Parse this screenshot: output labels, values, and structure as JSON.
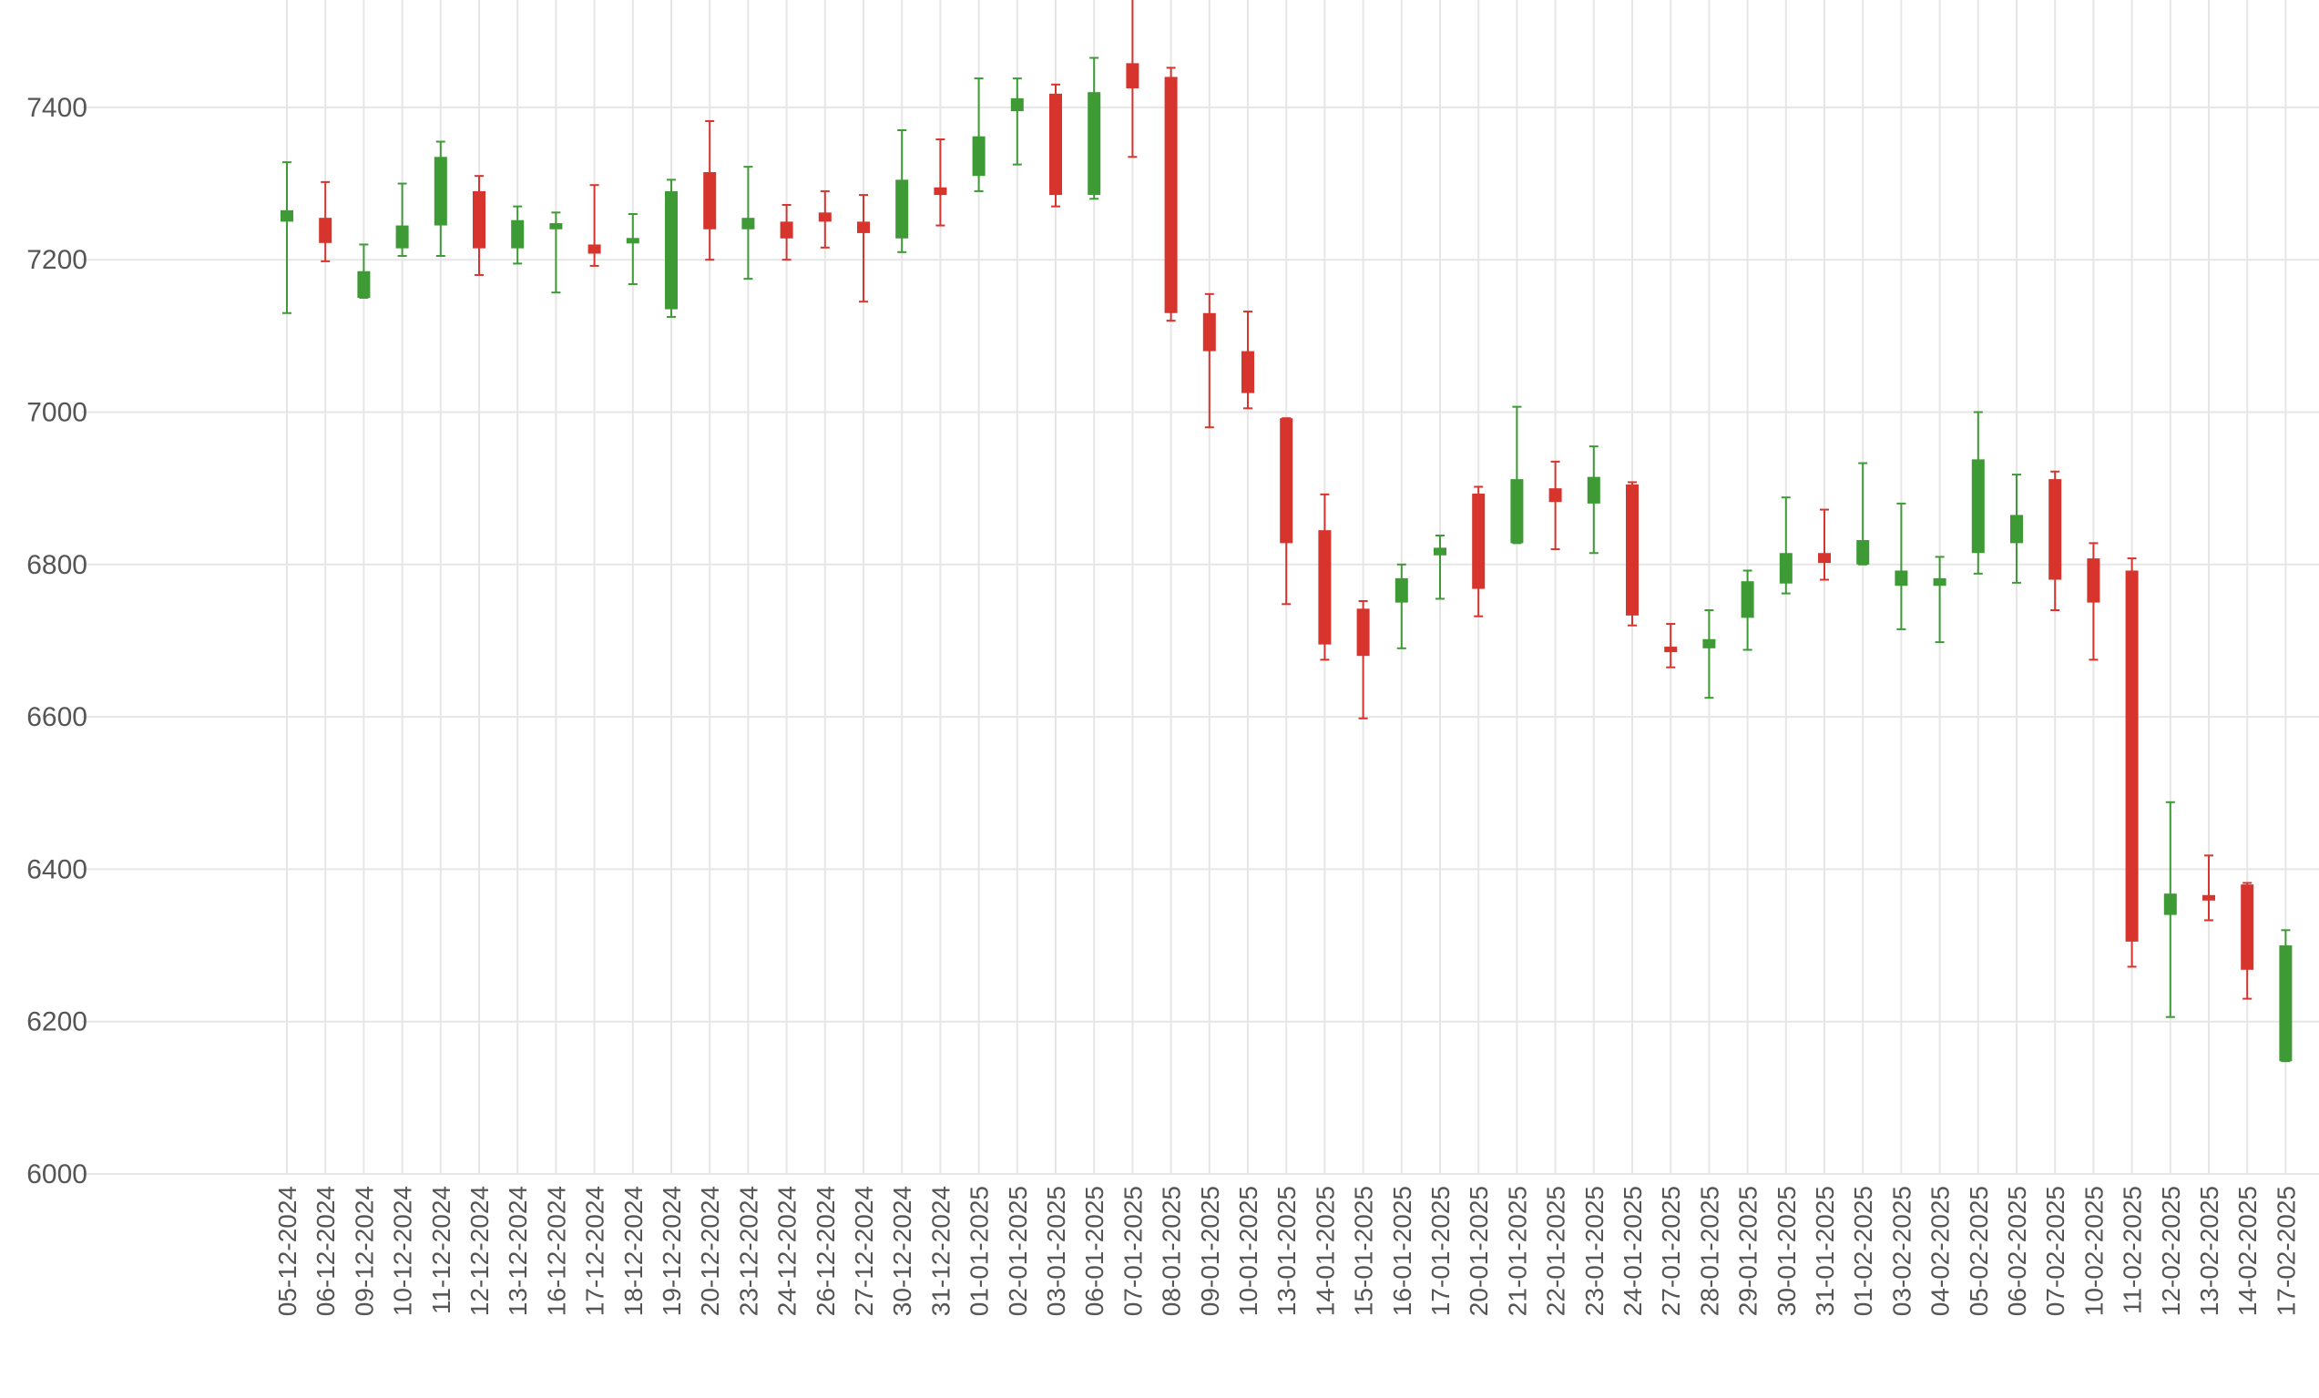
{
  "chart_data": {
    "type": "candlestick",
    "title": "",
    "xlabel": "",
    "ylabel": "",
    "ylim": [
      6000,
      7540
    ],
    "yticks": [
      6000,
      6200,
      6400,
      6600,
      6800,
      7000,
      7200,
      7400
    ],
    "grid": true,
    "legend": "none",
    "colors": {
      "up": "#3d9a35",
      "down": "#d6342c",
      "grid": "#e6e6e6",
      "text": "#555555"
    },
    "categories": [
      "05-12-2024",
      "06-12-2024",
      "09-12-2024",
      "10-12-2024",
      "11-12-2024",
      "12-12-2024",
      "13-12-2024",
      "16-12-2024",
      "17-12-2024",
      "18-12-2024",
      "19-12-2024",
      "20-12-2024",
      "23-12-2024",
      "24-12-2024",
      "26-12-2024",
      "27-12-2024",
      "30-12-2024",
      "31-12-2024",
      "01-01-2025",
      "02-01-2025",
      "03-01-2025",
      "06-01-2025",
      "07-01-2025",
      "08-01-2025",
      "09-01-2025",
      "10-01-2025",
      "13-01-2025",
      "14-01-2025",
      "15-01-2025",
      "16-01-2025",
      "17-01-2025",
      "20-01-2025",
      "21-01-2025",
      "22-01-2025",
      "23-01-2025",
      "24-01-2025",
      "27-01-2025",
      "28-01-2025",
      "29-01-2025",
      "30-01-2025",
      "31-01-2025",
      "01-02-2025",
      "03-02-2025",
      "04-02-2025",
      "05-02-2025",
      "06-02-2025",
      "07-02-2025",
      "10-02-2025",
      "11-02-2025",
      "12-02-2025",
      "13-02-2025",
      "14-02-2025",
      "17-02-2025"
    ],
    "open": [
      7250,
      7255,
      7150,
      7215,
      7245,
      7290,
      7215,
      7240,
      7220,
      7222,
      7135,
      7315,
      7240,
      7250,
      7262,
      7250,
      7228,
      7295,
      7310,
      7395,
      7418,
      7285,
      7458,
      7440,
      7130,
      7080,
      6992,
      6845,
      6742,
      6750,
      6812,
      6893,
      6828,
      6900,
      6880,
      6905,
      6692,
      6690,
      6730,
      6775,
      6815,
      6800,
      6772,
      6772,
      6815,
      6828,
      6912,
      6808,
      6792,
      6340,
      6365,
      6380,
      6148
    ],
    "close": [
      7265,
      7222,
      7185,
      7245,
      7335,
      7215,
      7252,
      7248,
      7208,
      7228,
      7290,
      7240,
      7255,
      7228,
      7250,
      7235,
      7305,
      7285,
      7362,
      7412,
      7285,
      7420,
      7425,
      7130,
      7080,
      7025,
      6828,
      6695,
      6680,
      6782,
      6822,
      6768,
      6912,
      6882,
      6915,
      6733,
      6685,
      6702,
      6778,
      6815,
      6802,
      6832,
      6792,
      6782,
      6938,
      6865,
      6780,
      6750,
      6305,
      6368,
      6360,
      6268,
      6300
    ],
    "high": [
      7328,
      7302,
      7220,
      7300,
      7355,
      7310,
      7270,
      7262,
      7298,
      7260,
      7305,
      7382,
      7322,
      7272,
      7290,
      7285,
      7370,
      7358,
      7438,
      7438,
      7430,
      7465,
      7545,
      7452,
      7155,
      7132,
      6992,
      6892,
      6752,
      6800,
      6838,
      6902,
      7007,
      6935,
      6955,
      6908,
      6722,
      6740,
      6792,
      6888,
      6872,
      6933,
      6880,
      6810,
      7000,
      6918,
      6922,
      6828,
      6808,
      6488,
      6418,
      6382,
      6320
    ],
    "low": [
      7130,
      7198,
      7150,
      7205,
      7205,
      7180,
      7195,
      7157,
      7192,
      7168,
      7125,
      7200,
      7175,
      7200,
      7216,
      7145,
      7210,
      7245,
      7290,
      7325,
      7270,
      7280,
      7335,
      7120,
      6980,
      7005,
      6748,
      6675,
      6598,
      6690,
      6755,
      6732,
      6828,
      6820,
      6815,
      6720,
      6665,
      6625,
      6688,
      6762,
      6780,
      6800,
      6715,
      6698,
      6788,
      6776,
      6740,
      6675,
      6272,
      6206,
      6333,
      6230,
      6148
    ]
  }
}
